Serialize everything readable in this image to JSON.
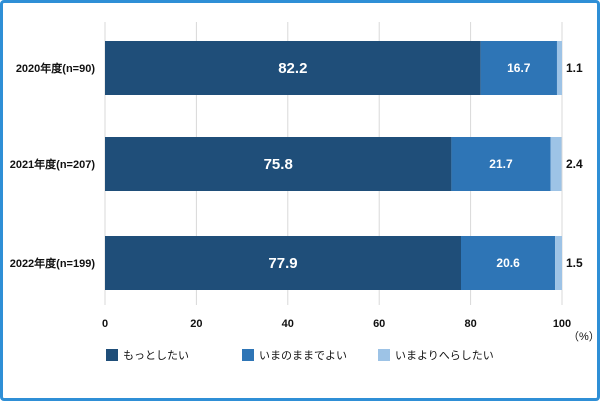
{
  "chart_data": {
    "type": "bar",
    "orientation": "horizontal",
    "stacked": true,
    "categories": [
      "2020年度(n=90)",
      "2021年度(n=207)",
      "2022年度(n=199)"
    ],
    "series": [
      {
        "name": "もっとしたい",
        "values": [
          82.2,
          75.8,
          77.9
        ],
        "color": "#1f4e79"
      },
      {
        "name": "いまのままでよい",
        "values": [
          16.7,
          21.7,
          20.6
        ],
        "color": "#2e75b6"
      },
      {
        "name": "いまよりへらしたい",
        "values": [
          1.1,
          2.4,
          1.5
        ],
        "color": "#9dc3e6"
      }
    ],
    "xlim": [
      0,
      100
    ],
    "xticks": [
      0,
      20,
      40,
      60,
      80,
      100
    ],
    "unit": "（%）",
    "grid": true,
    "legend_position": "bottom"
  },
  "colors": {
    "frame": "#2f8fd6",
    "grid": "#d9d9d9"
  }
}
